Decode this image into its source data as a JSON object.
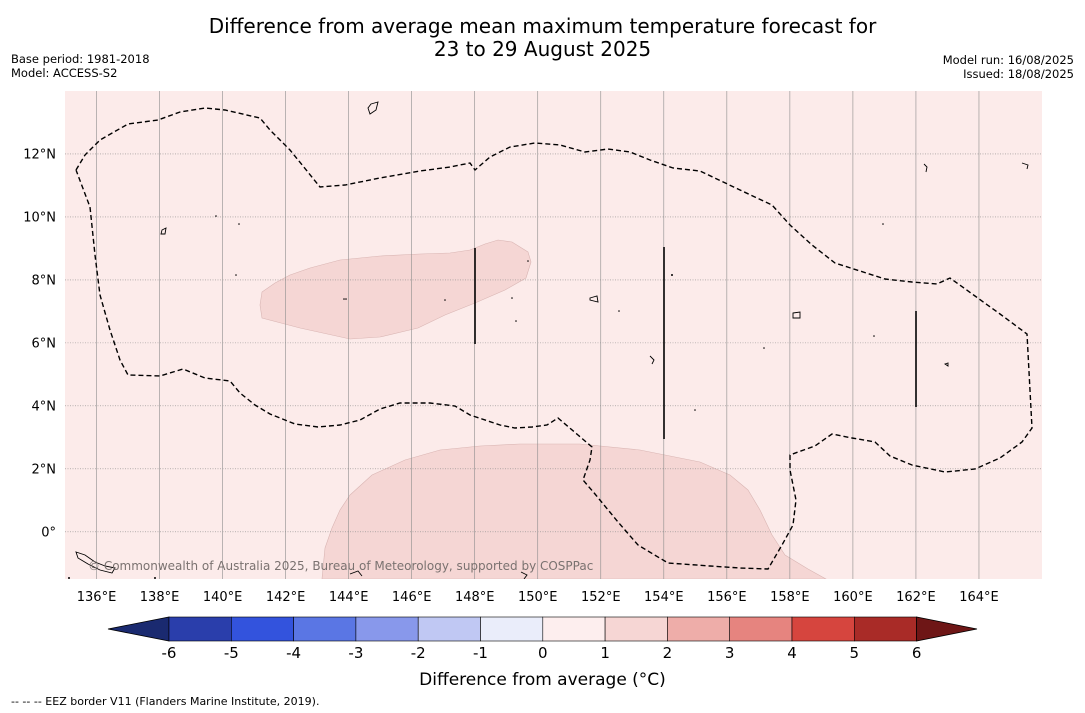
{
  "title_line1": "Difference from average mean maximum temperature forecast for",
  "title_line2": "23 to 29 August 2025",
  "meta": {
    "base_period": "Base period: 1981-2018",
    "model": "Model: ACCESS-S2",
    "model_run": "Model run: 16/08/2025",
    "issued": "Issued: 18/08/2025"
  },
  "map": {
    "lon_range": [
      135,
      166
    ],
    "lat_range": [
      -1.5,
      14
    ],
    "lon_ticks": [
      "136°E",
      "138°E",
      "140°E",
      "142°E",
      "144°E",
      "146°E",
      "148°E",
      "150°E",
      "152°E",
      "154°E",
      "156°E",
      "158°E",
      "160°E",
      "162°E",
      "164°E"
    ],
    "lat_ticks": [
      "12°N",
      "10°N",
      "8°N",
      "6°N",
      "4°N",
      "2°N",
      "0°"
    ],
    "background_color": "#fcebea",
    "anomaly_color": "#f5d6d4",
    "copyright": "© Commonwealth of Australia 2025, Bureau of Meteorology, supported by COSPPac"
  },
  "colorbar": {
    "colors": [
      "#1a2a70",
      "#2a3eab",
      "#3353dd",
      "#5a76e4",
      "#8898eb",
      "#c0c8f3",
      "#eaedfa",
      "#fdeeee",
      "#f6d6d4",
      "#eeada9",
      "#e6847f",
      "#d6453e",
      "#a92b27",
      "#6e1616"
    ],
    "labels": [
      "-6",
      "-5",
      "-4",
      "-3",
      "-2",
      "-1",
      "0",
      "1",
      "2",
      "3",
      "4",
      "5",
      "6"
    ],
    "title": "Difference from average ($^\\circ$C)",
    "title_display": "Difference from average (°C)"
  },
  "footnote": "--  --  -- EEZ border V11 (Flanders Marine Institute, 2019)."
}
